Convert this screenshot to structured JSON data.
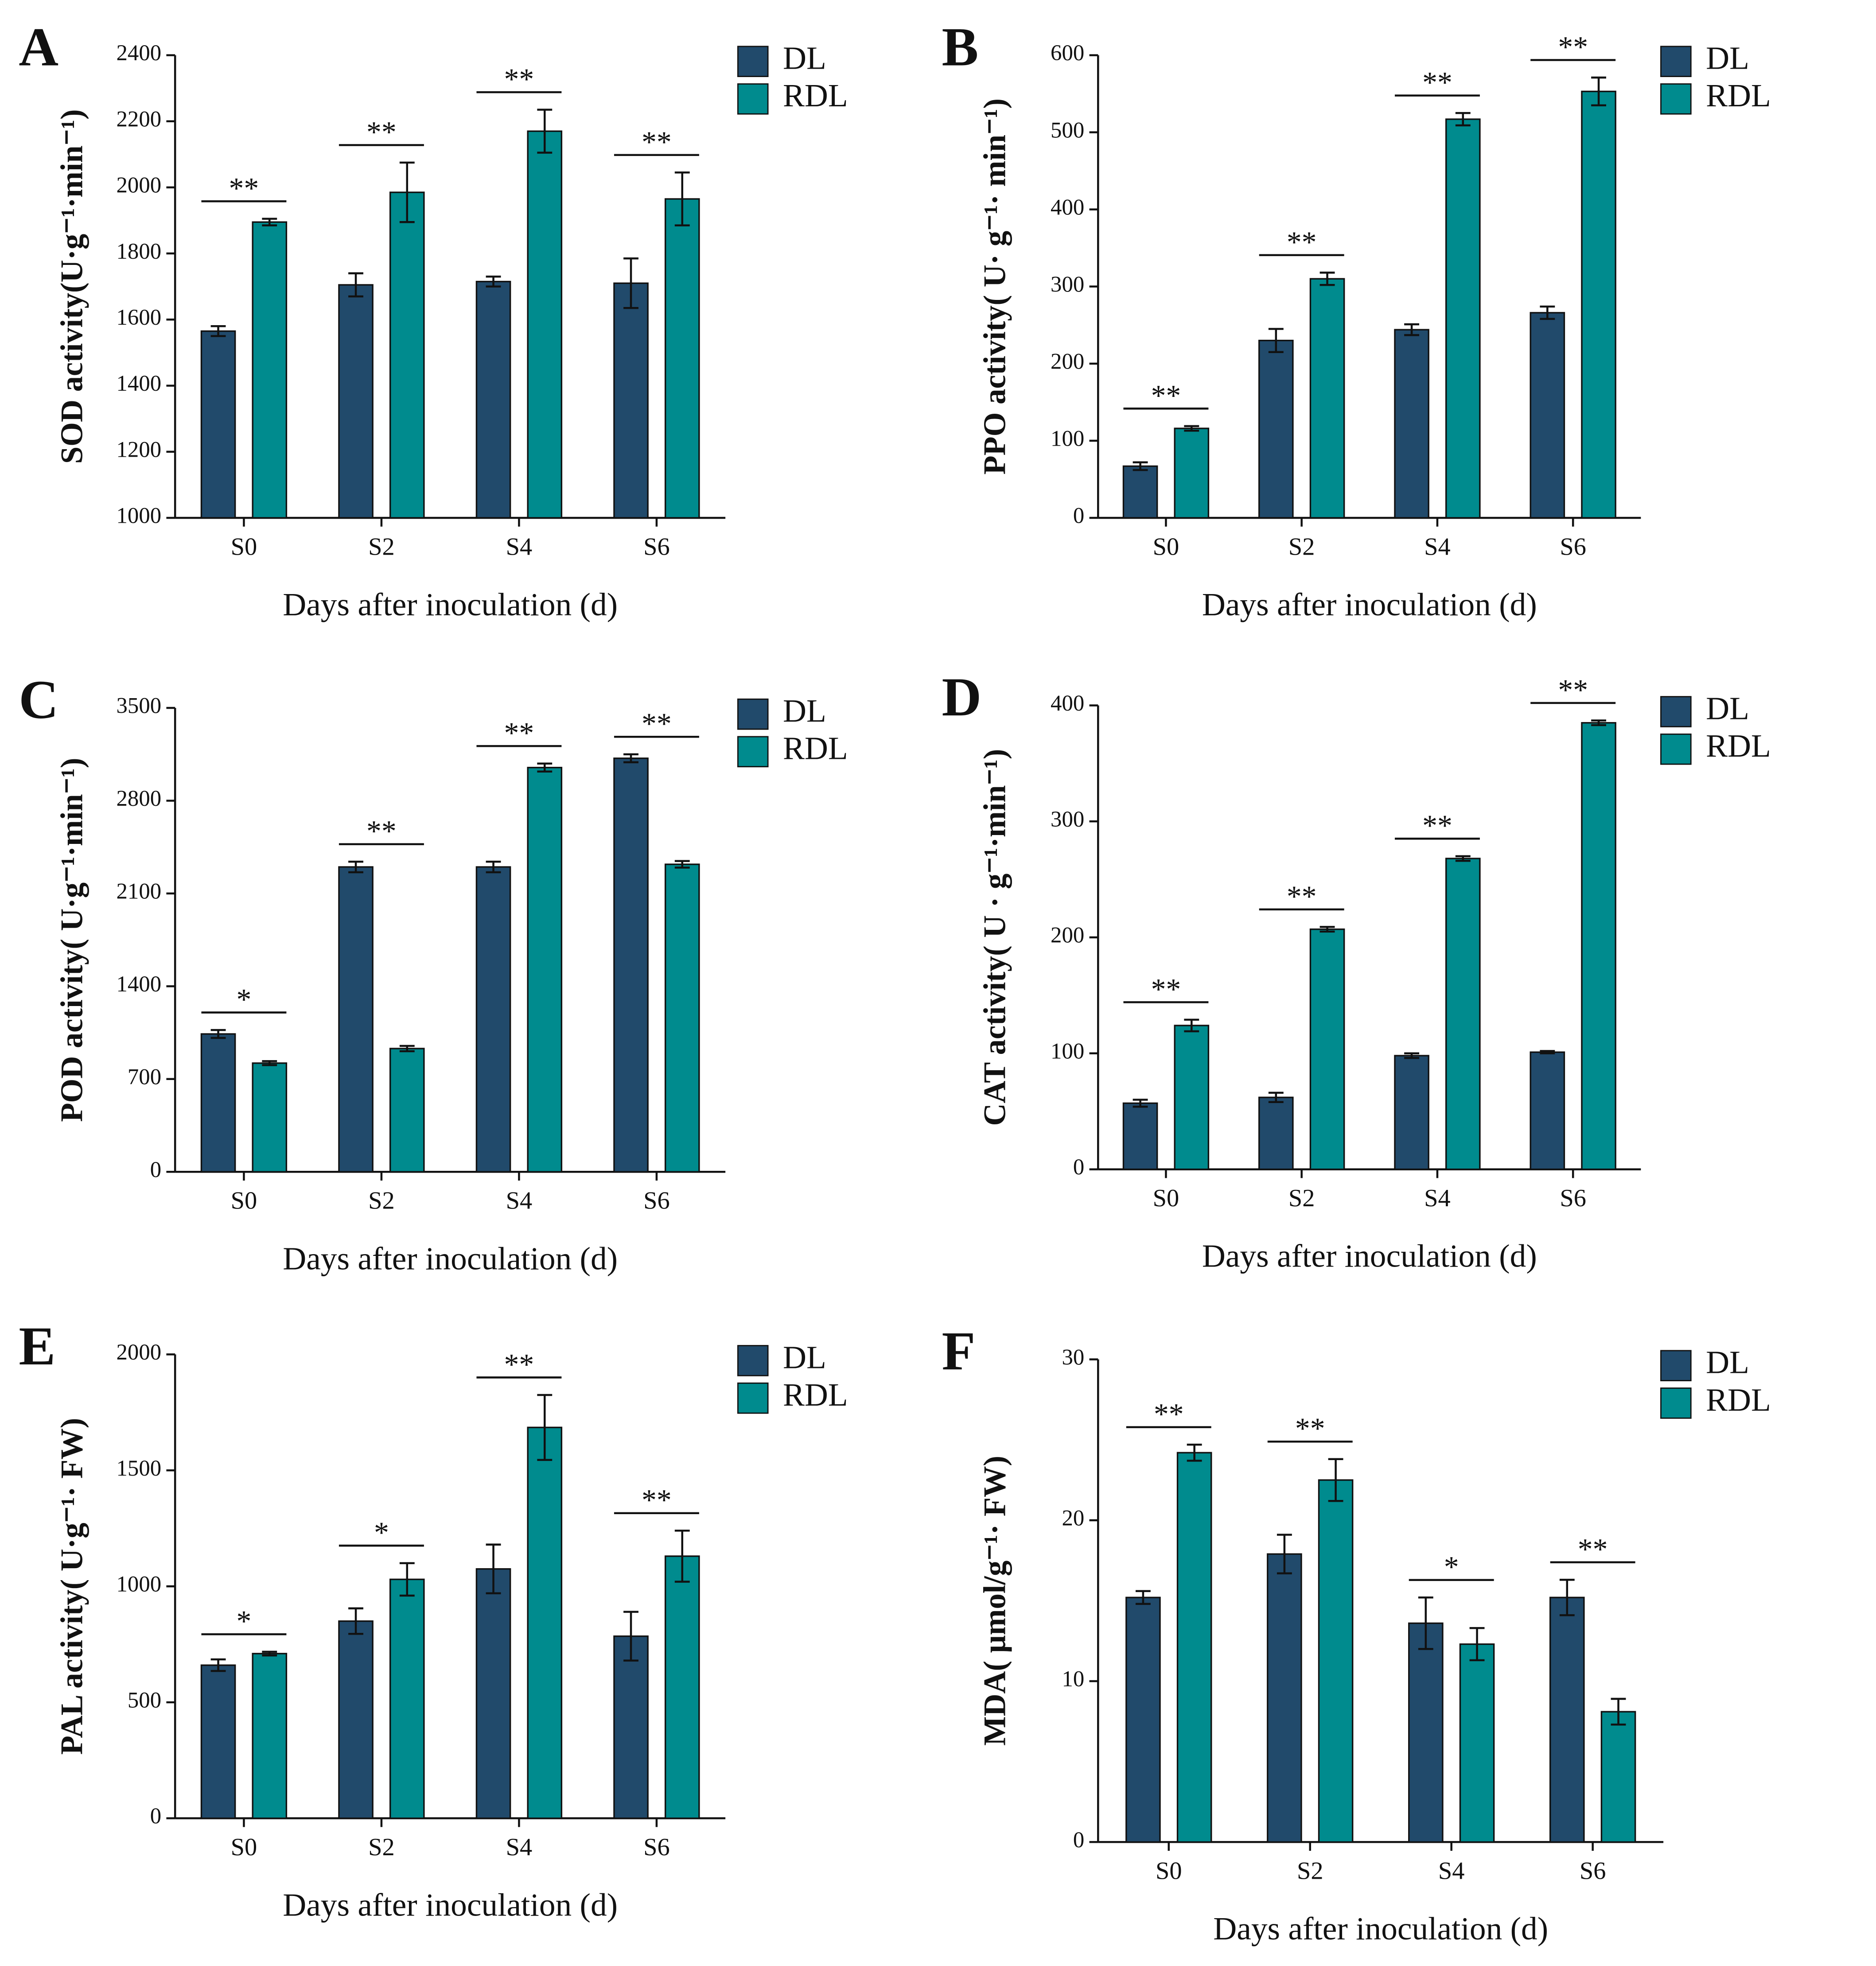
{
  "chart_data": [
    {
      "type": "bar",
      "panel_label": "A",
      "ylabel": "SOD activity(U·g⁻¹·min⁻¹)",
      "xlabel": "Days after inoculation (d)",
      "categories": [
        "S0",
        "S2",
        "S4",
        "S6"
      ],
      "series": [
        {
          "name": "DL",
          "color": "#214a6b",
          "values": [
            1565,
            1705,
            1715,
            1710
          ],
          "errors": [
            15,
            35,
            15,
            75
          ]
        },
        {
          "name": "RDL",
          "color": "#008b8e",
          "values": [
            1895,
            1985,
            2170,
            1965
          ],
          "errors": [
            10,
            90,
            65,
            80
          ]
        }
      ],
      "significance": [
        "**",
        "**",
        "**",
        "**"
      ],
      "ylim": [
        1000,
        2400
      ],
      "yticks": [
        1000,
        1200,
        1400,
        1600,
        1800,
        2000,
        2200,
        2400
      ]
    },
    {
      "type": "bar",
      "panel_label": "B",
      "ylabel": "PPO activity( U· g⁻¹· min⁻¹)",
      "xlabel": "Days after inoculation (d)",
      "categories": [
        "S0",
        "S2",
        "S4",
        "S6"
      ],
      "series": [
        {
          "name": "DL",
          "color": "#214a6b",
          "values": [
            67,
            230,
            244,
            266
          ],
          "errors": [
            5,
            15,
            7,
            8
          ]
        },
        {
          "name": "RDL",
          "color": "#008b8e",
          "values": [
            116,
            310,
            517,
            553
          ],
          "errors": [
            3,
            8,
            8,
            18
          ]
        }
      ],
      "significance": [
        "**",
        "**",
        "**",
        "**"
      ],
      "ylim": [
        0,
        600
      ],
      "yticks": [
        0,
        100,
        200,
        300,
        400,
        500,
        600
      ]
    },
    {
      "type": "bar",
      "panel_label": "C",
      "ylabel": "POD activity( U·g⁻¹·min⁻¹)",
      "xlabel": "Days after inoculation (d)",
      "categories": [
        "S0",
        "S2",
        "S4",
        "S6"
      ],
      "series": [
        {
          "name": "DL",
          "color": "#214a6b",
          "values": [
            1040,
            2300,
            2300,
            3120
          ],
          "errors": [
            30,
            40,
            40,
            30
          ]
        },
        {
          "name": "RDL",
          "color": "#008b8e",
          "values": [
            820,
            930,
            3050,
            2320
          ],
          "errors": [
            15,
            20,
            30,
            25
          ]
        }
      ],
      "significance": [
        "*",
        "**",
        "**",
        "**"
      ],
      "ylim": [
        0,
        3500
      ],
      "yticks": [
        0,
        700,
        1400,
        2100,
        2800,
        3500
      ]
    },
    {
      "type": "bar",
      "panel_label": "D",
      "ylabel": "CAT activity( U · g⁻¹·min⁻¹)",
      "xlabel": "Days after inoculation (d)",
      "categories": [
        "S0",
        "S2",
        "S4",
        "S6"
      ],
      "series": [
        {
          "name": "DL",
          "color": "#214a6b",
          "values": [
            57,
            62,
            98,
            101
          ],
          "errors": [
            3,
            4,
            2,
            1
          ]
        },
        {
          "name": "RDL",
          "color": "#008b8e",
          "values": [
            124,
            207,
            268,
            385
          ],
          "errors": [
            5,
            2,
            2,
            2
          ]
        }
      ],
      "significance": [
        "**",
        "**",
        "**",
        "**"
      ],
      "ylim": [
        0,
        400
      ],
      "yticks": [
        0,
        100,
        200,
        300,
        400
      ]
    },
    {
      "type": "bar",
      "panel_label": "E",
      "ylabel": "PAL activity( U·g⁻¹· FW)",
      "xlabel": "Days after inoculation (d)",
      "categories": [
        "S0",
        "S2",
        "S4",
        "S6"
      ],
      "series": [
        {
          "name": "DL",
          "color": "#214a6b",
          "values": [
            660,
            850,
            1075,
            785
          ],
          "errors": [
            25,
            55,
            105,
            105
          ]
        },
        {
          "name": "RDL",
          "color": "#008b8e",
          "values": [
            710,
            1030,
            1685,
            1130
          ],
          "errors": [
            8,
            70,
            140,
            110
          ]
        }
      ],
      "significance": [
        "*",
        "*",
        "**",
        "**"
      ],
      "ylim": [
        0,
        2000
      ],
      "yticks": [
        0,
        500,
        1000,
        1500,
        2000
      ]
    },
    {
      "type": "bar",
      "panel_label": "F",
      "ylabel": "MDA( μmol/g⁻¹· FW)",
      "xlabel": "Days after inoculation (d)",
      "categories": [
        "S0",
        "S2",
        "S4",
        "S6"
      ],
      "series": [
        {
          "name": "DL",
          "color": "#214a6b",
          "values": [
            15.2,
            17.9,
            13.6,
            15.2
          ],
          "errors": [
            0.4,
            1.2,
            1.6,
            1.1
          ]
        },
        {
          "name": "RDL",
          "color": "#008b8e",
          "values": [
            24.2,
            22.5,
            12.3,
            8.1
          ],
          "errors": [
            0.5,
            1.3,
            1.0,
            0.8
          ]
        }
      ],
      "significance": [
        "**",
        "**",
        "*",
        "**"
      ],
      "ylim": [
        0,
        30
      ],
      "yticks": [
        0,
        10,
        20,
        30
      ]
    }
  ]
}
